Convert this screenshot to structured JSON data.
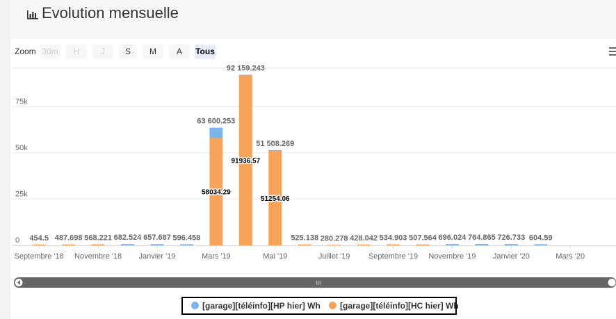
{
  "title": "Evolution mensuelle",
  "icons": {
    "title": "bar-chart-icon",
    "menu": "hamburger-menu-icon",
    "legend": "circle-marker-icon"
  },
  "zoom": {
    "label": "Zoom",
    "buttons": [
      {
        "label": "30m",
        "state": "disabled"
      },
      {
        "label": "H",
        "state": "disabled"
      },
      {
        "label": "J",
        "state": "disabled"
      },
      {
        "label": "S",
        "state": "normal"
      },
      {
        "label": "M",
        "state": "normal"
      },
      {
        "label": "A",
        "state": "normal"
      },
      {
        "label": "Tous",
        "state": "active"
      }
    ]
  },
  "navigator": {
    "handle_glyph": "III"
  },
  "legend": [
    {
      "label": "[garage][téléinfo][HP hier] Wh",
      "color": "#7cb5ec"
    },
    {
      "label": "[garage][téléinfo][HC hier] Wh",
      "color": "#f7a35c"
    }
  ],
  "chart_data": {
    "type": "bar",
    "stacked": true,
    "ylim": [
      0,
      95000
    ],
    "yticks": [
      {
        "value": 0,
        "label": "0"
      },
      {
        "value": 25000,
        "label": "25k"
      },
      {
        "value": 50000,
        "label": "50k"
      },
      {
        "value": 75000,
        "label": "75k"
      }
    ],
    "xticks": [
      {
        "index": 0,
        "label": "Septembre '18"
      },
      {
        "index": 2,
        "label": "Novembre '18"
      },
      {
        "index": 4,
        "label": "Janvier '19"
      },
      {
        "index": 6,
        "label": "Mars '19"
      },
      {
        "index": 8,
        "label": "Mai '19"
      },
      {
        "index": 10,
        "label": "Juillet '19"
      },
      {
        "index": 12,
        "label": "Septembre '19"
      },
      {
        "index": 14,
        "label": "Novembre '19"
      },
      {
        "index": 16,
        "label": "Janvier '20"
      },
      {
        "index": 18,
        "label": "Mars '20"
      }
    ],
    "grid": true,
    "legend_position": "bottom",
    "categories": [
      "2018-09",
      "2018-10",
      "2018-11",
      "2018-12",
      "2019-01",
      "2019-02",
      "2019-03",
      "2019-04",
      "2019-05",
      "2019-06",
      "2019-07",
      "2019-08",
      "2019-09",
      "2019-10",
      "2019-11",
      "2019-12",
      "2020-01",
      "2020-02",
      "2020-03"
    ],
    "series": [
      {
        "name": "[garage][téléinfo][HP hier] Wh",
        "color": "#7cb5ec",
        "values": [
          0,
          0,
          0,
          682.524,
          657.687,
          596.458,
          5565.963,
          222.673,
          254.209,
          0,
          0,
          0,
          0,
          0,
          696.024,
          764.865,
          726.733,
          604.59,
          0
        ]
      },
      {
        "name": "[garage][téléinfo][HC hier] Wh",
        "color": "#f7a35c",
        "values": [
          454.5,
          487.698,
          568.221,
          0,
          0,
          0,
          58034.29,
          91936.57,
          51254.06,
          525.138,
          280.278,
          428.042,
          534.903,
          507.564,
          0,
          0,
          0,
          0,
          0
        ]
      }
    ],
    "total_labels": [
      "454.5",
      "487.698",
      "568.221",
      "682.524",
      "657.687",
      "596.458",
      "63 600.253",
      "92 159.243",
      "51 508.269",
      "525.138",
      "280.278",
      "428.042",
      "534.903",
      "507.564",
      "696.024",
      "764.865",
      "726.733",
      "604.59",
      ""
    ],
    "inner_labels": {
      "6": "58034.29",
      "7": "91936.57",
      "8": "51254.06"
    }
  }
}
